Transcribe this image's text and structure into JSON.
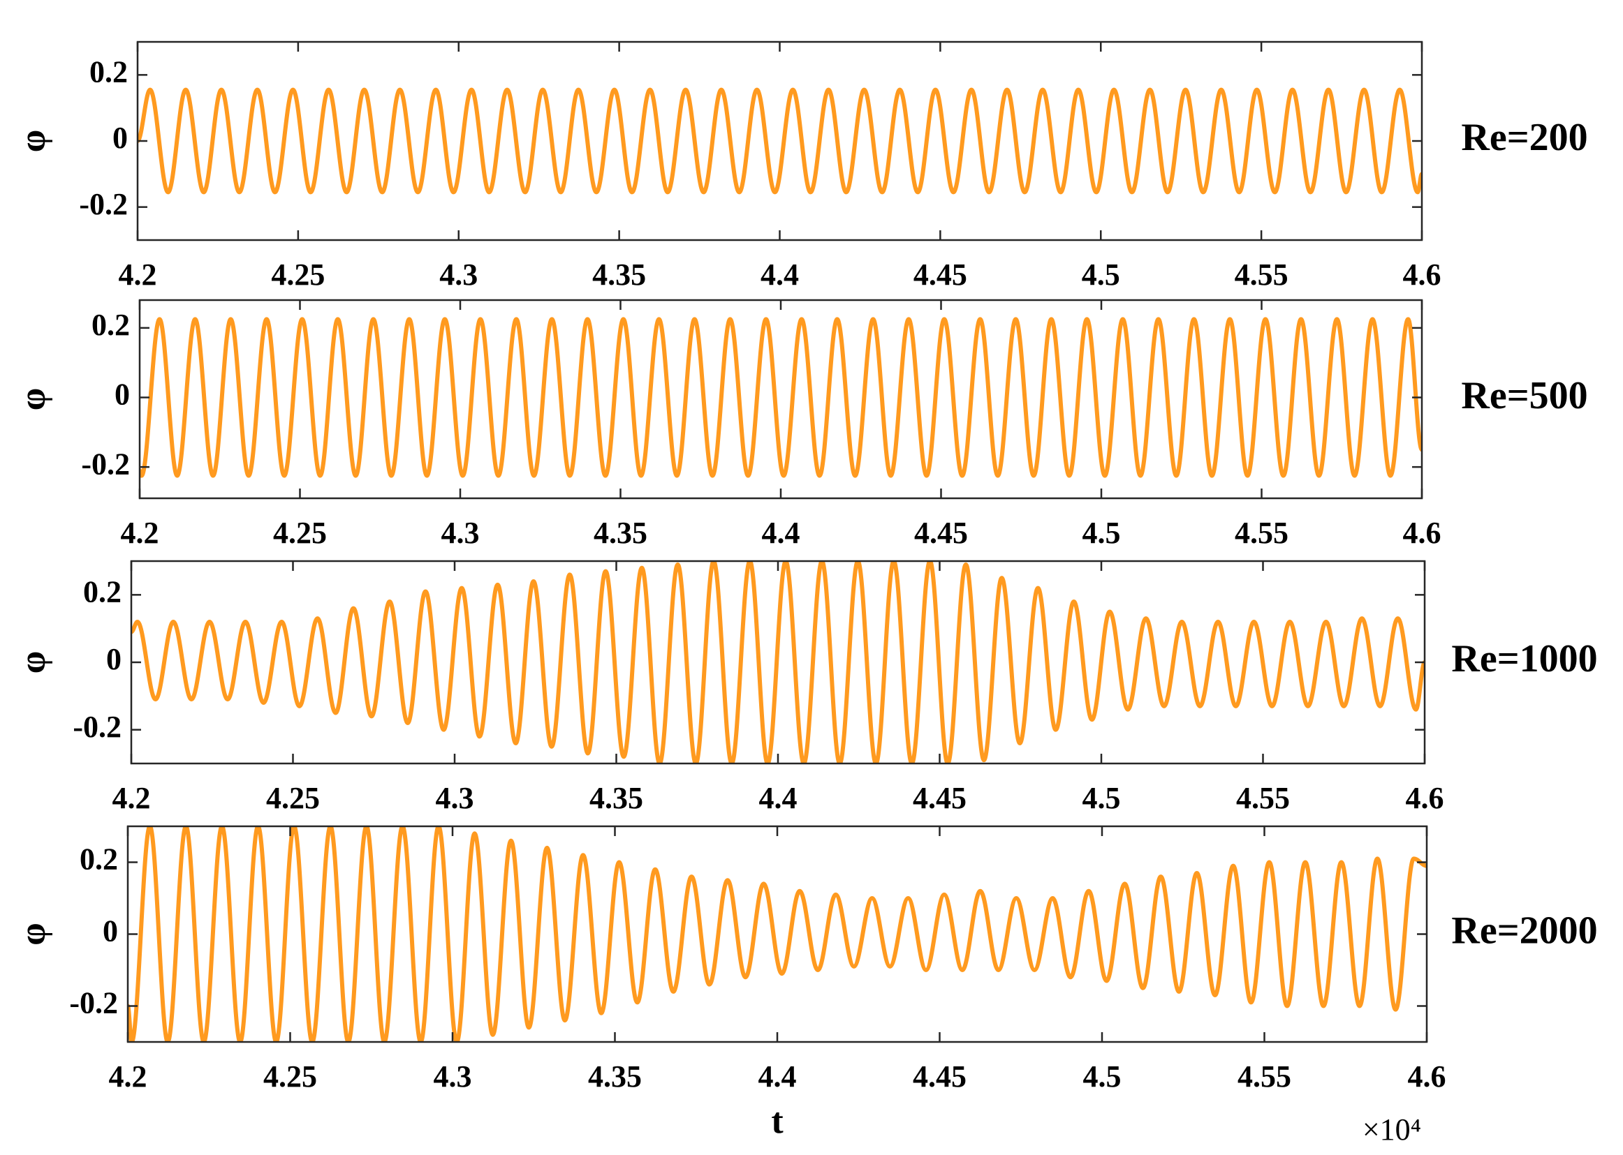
{
  "chart_data": [
    {
      "type": "line",
      "annotation": "Re=200",
      "ylabel": "φ",
      "color": "#ff9a1f",
      "xlim": [
        42000,
        46000
      ],
      "ylim": [
        -0.3,
        0.3
      ],
      "yticks": [
        -0.2,
        0,
        0.2
      ],
      "xticks": [
        {
          "value": 42000,
          "label": "4.2"
        },
        {
          "value": 42500,
          "label": "4.25"
        },
        {
          "value": 43000,
          "label": "4.3"
        },
        {
          "value": 43500,
          "label": "4.35"
        },
        {
          "value": 44000,
          "label": "4.4"
        },
        {
          "value": 44500,
          "label": "4.45"
        },
        {
          "value": 45000,
          "label": "4.5"
        },
        {
          "value": 45500,
          "label": "4.55"
        },
        {
          "value": 46000,
          "label": "4.6"
        }
      ],
      "x": [
        42000,
        42039,
        42095,
        42150,
        42206,
        42261,
        42317,
        42373,
        42428,
        42484,
        42539,
        42595,
        42651,
        42706,
        42762,
        42817,
        42873,
        42929,
        42984,
        43040,
        43095,
        43151,
        43207,
        43262,
        43318,
        43373,
        43429,
        43485,
        43540,
        43596,
        43651,
        43707,
        43763,
        43818,
        43874,
        43929,
        43985,
        44041,
        44096,
        44152,
        44207,
        44263,
        44319,
        44374,
        44430,
        44485,
        44541,
        44597,
        44652,
        44708,
        44763,
        44819,
        44875,
        44930,
        44986,
        45041,
        45097,
        45153,
        45208,
        45264,
        45319,
        45375,
        45431,
        45486,
        45542,
        45597,
        45653,
        45709,
        45764,
        45820,
        45875,
        45931,
        45987,
        46000
      ],
      "values": [
        0,
        0.155,
        -0.155,
        0.155,
        -0.155,
        0.155,
        -0.155,
        0.155,
        -0.155,
        0.155,
        -0.155,
        0.155,
        -0.155,
        0.155,
        -0.155,
        0.155,
        -0.155,
        0.155,
        -0.155,
        0.155,
        -0.155,
        0.155,
        -0.155,
        0.155,
        -0.155,
        0.155,
        -0.155,
        0.155,
        -0.155,
        0.155,
        -0.155,
        0.155,
        -0.155,
        0.155,
        -0.155,
        0.155,
        -0.155,
        0.155,
        -0.155,
        0.155,
        -0.155,
        0.155,
        -0.155,
        0.155,
        -0.155,
        0.155,
        -0.155,
        0.155,
        -0.155,
        0.155,
        -0.155,
        0.155,
        -0.155,
        0.155,
        -0.155,
        0.155,
        -0.155,
        0.155,
        -0.155,
        0.155,
        -0.155,
        0.155,
        -0.155,
        0.155,
        -0.155,
        0.155,
        -0.155,
        0.155,
        -0.155,
        0.155,
        -0.155,
        0.155,
        -0.155,
        -0.1
      ]
    },
    {
      "type": "line",
      "annotation": "Re=500",
      "ylabel": "φ",
      "color": "#ff9a1f",
      "xlim": [
        42000,
        46000
      ],
      "ylim": [
        -0.29,
        0.28
      ],
      "yticks": [
        -0.2,
        0,
        0.2
      ],
      "xticks": [
        {
          "value": 42000,
          "label": "4.2"
        },
        {
          "value": 42500,
          "label": "4.25"
        },
        {
          "value": 43000,
          "label": "4.3"
        },
        {
          "value": 43500,
          "label": "4.35"
        },
        {
          "value": 44000,
          "label": "4.4"
        },
        {
          "value": 44500,
          "label": "4.45"
        },
        {
          "value": 45000,
          "label": "4.5"
        },
        {
          "value": 45500,
          "label": "4.55"
        },
        {
          "value": 46000,
          "label": "4.6"
        }
      ],
      "x": [
        42000,
        42006,
        42062,
        42117,
        42173,
        42229,
        42284,
        42340,
        42396,
        42451,
        42507,
        42563,
        42618,
        42674,
        42729,
        42785,
        42841,
        42896,
        42952,
        43008,
        43063,
        43119,
        43175,
        43230,
        43286,
        43342,
        43397,
        43453,
        43509,
        43564,
        43620,
        43676,
        43731,
        43787,
        43842,
        43898,
        43954,
        44009,
        44065,
        44121,
        44176,
        44232,
        44288,
        44343,
        44399,
        44455,
        44510,
        44566,
        44622,
        44677,
        44733,
        44789,
        44844,
        44900,
        44955,
        45011,
        45067,
        45122,
        45178,
        45234,
        45289,
        45345,
        45401,
        45456,
        45512,
        45568,
        45623,
        45679,
        45735,
        45790,
        45846,
        45902,
        45957,
        46000
      ],
      "values": [
        -0.21,
        -0.225,
        0.225,
        -0.225,
        0.225,
        -0.225,
        0.225,
        -0.225,
        0.225,
        -0.225,
        0.225,
        -0.225,
        0.225,
        -0.225,
        0.225,
        -0.225,
        0.225,
        -0.225,
        0.225,
        -0.225,
        0.225,
        -0.225,
        0.225,
        -0.225,
        0.225,
        -0.225,
        0.225,
        -0.225,
        0.225,
        -0.225,
        0.225,
        -0.225,
        0.225,
        -0.225,
        0.225,
        -0.225,
        0.225,
        -0.225,
        0.225,
        -0.225,
        0.225,
        -0.225,
        0.225,
        -0.225,
        0.225,
        -0.225,
        0.225,
        -0.225,
        0.225,
        -0.225,
        0.225,
        -0.225,
        0.225,
        -0.225,
        0.225,
        -0.225,
        0.225,
        -0.225,
        0.225,
        -0.225,
        0.225,
        -0.225,
        0.225,
        -0.225,
        0.225,
        -0.225,
        0.225,
        -0.225,
        0.225,
        -0.225,
        0.225,
        -0.225,
        0.225,
        -0.15
      ]
    },
    {
      "type": "line",
      "annotation": "Re=1000",
      "ylabel": "φ",
      "color": "#ff9a1f",
      "xlim": [
        42000,
        46000
      ],
      "ylim": [
        -0.3,
        0.3
      ],
      "yticks": [
        -0.2,
        0,
        0.2
      ],
      "xticks": [
        {
          "value": 42000,
          "label": "4.2"
        },
        {
          "value": 42500,
          "label": "4.25"
        },
        {
          "value": 43000,
          "label": "4.3"
        },
        {
          "value": 43500,
          "label": "4.35"
        },
        {
          "value": 44000,
          "label": "4.4"
        },
        {
          "value": 44500,
          "label": "4.45"
        },
        {
          "value": 45000,
          "label": "4.5"
        },
        {
          "value": 45500,
          "label": "4.55"
        },
        {
          "value": 46000,
          "label": "4.6"
        }
      ],
      "x": [
        42000,
        42019,
        42075,
        42130,
        42186,
        42242,
        42298,
        42353,
        42409,
        42465,
        42520,
        42576,
        42632,
        42687,
        42743,
        42799,
        42855,
        42910,
        42966,
        43022,
        43077,
        43133,
        43189,
        43244,
        43300,
        43356,
        43412,
        43467,
        43523,
        43579,
        43634,
        43690,
        43746,
        43801,
        43857,
        43913,
        43968,
        44024,
        44080,
        44136,
        44191,
        44247,
        44303,
        44358,
        44414,
        44470,
        44525,
        44581,
        44637,
        44692,
        44748,
        44804,
        44859,
        44915,
        44971,
        45026,
        45082,
        45138,
        45194,
        45249,
        45305,
        45361,
        45416,
        45472,
        45528,
        45583,
        45639,
        45695,
        45750,
        45806,
        45862,
        45917,
        45973,
        46000
      ],
      "values": [
        0.09,
        0.12,
        -0.11,
        0.12,
        -0.11,
        0.12,
        -0.11,
        0.12,
        -0.12,
        0.12,
        -0.13,
        0.13,
        -0.15,
        0.16,
        -0.16,
        0.18,
        -0.18,
        0.21,
        -0.2,
        0.22,
        -0.22,
        0.23,
        -0.24,
        0.24,
        -0.25,
        0.26,
        -0.27,
        0.27,
        -0.28,
        0.28,
        -0.3,
        0.29,
        -0.3,
        0.3,
        -0.3,
        0.3,
        -0.3,
        0.3,
        -0.3,
        0.3,
        -0.3,
        0.3,
        -0.3,
        0.3,
        -0.3,
        0.3,
        -0.3,
        0.29,
        -0.29,
        0.25,
        -0.24,
        0.22,
        -0.2,
        0.18,
        -0.17,
        0.15,
        -0.14,
        0.13,
        -0.13,
        0.12,
        -0.13,
        0.12,
        -0.13,
        0.12,
        -0.13,
        0.12,
        -0.13,
        0.12,
        -0.13,
        0.13,
        -0.13,
        0.13,
        -0.14,
        0
      ]
    },
    {
      "type": "line",
      "annotation": "Re=2000",
      "ylabel": "φ",
      "xlabel": "t",
      "x_multiplier": "×10⁴",
      "color": "#ff9a1f",
      "xlim": [
        42000,
        46000
      ],
      "ylim": [
        -0.3,
        0.3
      ],
      "yticks": [
        -0.2,
        0,
        0.2
      ],
      "xticks": [
        {
          "value": 42000,
          "label": "4.2"
        },
        {
          "value": 42500,
          "label": "4.25"
        },
        {
          "value": 43000,
          "label": "4.3"
        },
        {
          "value": 43500,
          "label": "4.35"
        },
        {
          "value": 44000,
          "label": "4.4"
        },
        {
          "value": 44500,
          "label": "4.45"
        },
        {
          "value": 45000,
          "label": "4.5"
        },
        {
          "value": 45500,
          "label": "4.55"
        },
        {
          "value": 46000,
          "label": "4.6"
        }
      ],
      "x": [
        42000,
        42012,
        42068,
        42123,
        42179,
        42234,
        42290,
        42346,
        42401,
        42457,
        42512,
        42568,
        42624,
        42679,
        42735,
        42790,
        42846,
        42902,
        42957,
        43013,
        43068,
        43124,
        43180,
        43235,
        43291,
        43346,
        43402,
        43458,
        43513,
        43569,
        43624,
        43680,
        43736,
        43791,
        43847,
        43902,
        43958,
        44014,
        44069,
        44125,
        44180,
        44236,
        44292,
        44347,
        44403,
        44458,
        44514,
        44570,
        44625,
        44681,
        44736,
        44792,
        44848,
        44903,
        44959,
        45014,
        45070,
        45126,
        45181,
        45237,
        45292,
        45348,
        45404,
        45459,
        45515,
        45570,
        45626,
        45682,
        45737,
        45793,
        45848,
        45904,
        45960,
        46000
      ],
      "values": [
        -0.2,
        -0.3,
        0.3,
        -0.3,
        0.3,
        -0.3,
        0.3,
        -0.3,
        0.3,
        -0.3,
        0.3,
        -0.3,
        0.3,
        -0.3,
        0.3,
        -0.3,
        0.3,
        -0.3,
        0.3,
        -0.3,
        0.28,
        -0.28,
        0.26,
        -0.26,
        0.24,
        -0.24,
        0.22,
        -0.22,
        0.2,
        -0.19,
        0.18,
        -0.16,
        0.16,
        -0.14,
        0.15,
        -0.12,
        0.14,
        -0.11,
        0.12,
        -0.1,
        0.11,
        -0.09,
        0.1,
        -0.09,
        0.1,
        -0.1,
        0.11,
        -0.1,
        0.12,
        -0.1,
        0.1,
        -0.1,
        0.1,
        -0.12,
        0.12,
        -0.13,
        0.14,
        -0.15,
        0.16,
        -0.16,
        0.17,
        -0.17,
        0.19,
        -0.19,
        0.2,
        -0.2,
        0.2,
        -0.2,
        0.2,
        -0.2,
        0.21,
        -0.21,
        0.21,
        0.19
      ]
    }
  ]
}
